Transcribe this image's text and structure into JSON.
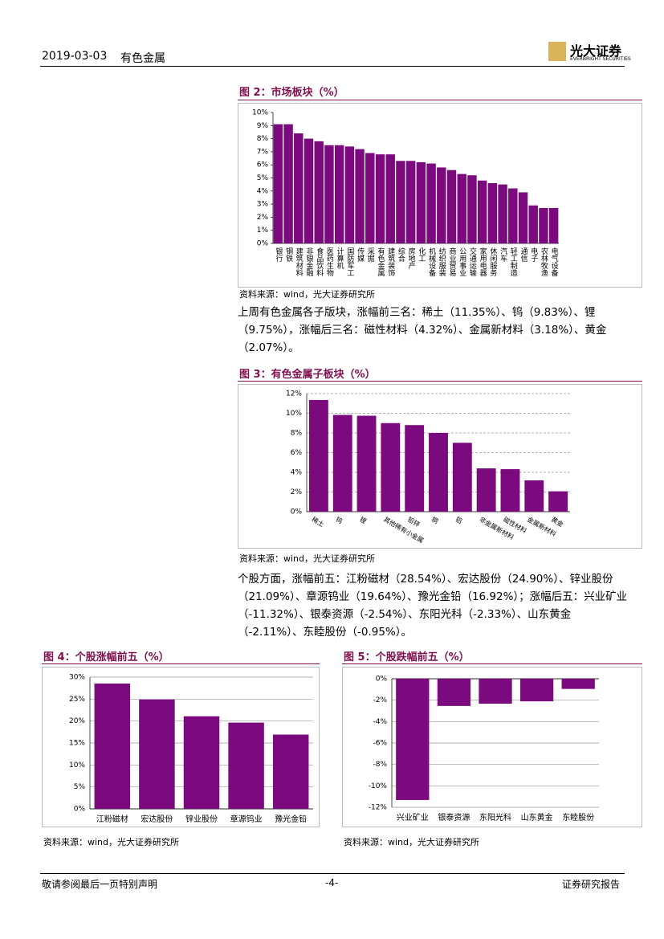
{
  "header": {
    "date": "2019-03-03",
    "sector": "有色金属",
    "logo": "光大证券",
    "logo_en": "EVERBRIGHT SECURITIES"
  },
  "paragraphs": [
    "上周有色金属各子版块，涨幅前三名：稀土（11.35%）、钨（9.83%）、锂（9.75%），涨幅后三名：磁性材料（4.32%）、金属新材料（3.18%）、黄金（2.07%）。",
    "个股方面，涨幅前五：江粉磁材（28.54%）、宏达股份（24.90%）、锌业股份（21.09%）、章源钨业（19.64%）、豫光金铅（16.92%）；涨幅后五：兴业矿业（-11.32%）、银泰资源（-2.54%）、东阳光科（-2.33%）、山东黄金（-2.11%）、东睦股份（-0.95%）。"
  ],
  "footer": {
    "left": "敬请参阅最后一页特别声明",
    "page": "-4-",
    "right": "证券研究报告"
  },
  "chart_data": [
    {
      "type": "bar",
      "title": "图 2：市场板块（%）",
      "source": "资料来源：wind，光大证券研究所",
      "color": "#7b0a7e",
      "grid": false,
      "categories": [
        "银行",
        "钢铁",
        "建筑材料",
        "非银金融",
        "食品饮料",
        "医药生物",
        "计算机",
        "国防军工",
        "传媒",
        "采掘",
        "有色金属",
        "建筑装饰",
        "综合",
        "房地产",
        "化工",
        "机械设备",
        "纺织服装",
        "商业贸易",
        "公用事业",
        "交通运输",
        "家用电器",
        "休闲服务",
        "汽车",
        "轻工制造",
        "通信",
        "电子",
        "农林牧渔",
        "电气设备"
      ],
      "values": [
        9.1,
        9.1,
        8.4,
        8.0,
        7.8,
        7.5,
        7.5,
        7.4,
        7.2,
        6.9,
        6.8,
        6.8,
        6.3,
        6.3,
        6.2,
        6.1,
        5.8,
        5.6,
        5.3,
        5.2,
        4.8,
        4.6,
        4.5,
        4.2,
        3.9,
        2.9,
        2.7,
        2.7
      ],
      "ylim": [
        0,
        10
      ],
      "yticks": [
        {
          "value": 0,
          "label": "0%"
        },
        {
          "value": 1,
          "label": "1%"
        },
        {
          "value": 2,
          "label": "2%"
        },
        {
          "value": 3,
          "label": "3%"
        },
        {
          "value": 4,
          "label": "4%"
        },
        {
          "value": 5,
          "label": "5%"
        },
        {
          "value": 6,
          "label": "6%"
        },
        {
          "value": 7,
          "label": "7%"
        },
        {
          "value": 8,
          "label": "8%"
        },
        {
          "value": 9,
          "label": "9%"
        },
        {
          "value": 10,
          "label": "10%"
        }
      ]
    },
    {
      "type": "bar",
      "title": "图 3：有色金属子板块（%）",
      "source": "资料来源：wind，光大证券研究所",
      "color": "#7b0a7e",
      "grid": true,
      "categories": [
        "稀土",
        "钨",
        "锂",
        "其他稀有小金属",
        "铅锌",
        "铜",
        "铝",
        "非金属新材料",
        "磁性材料",
        "金属新材料",
        "黄金"
      ],
      "values": [
        11.35,
        9.83,
        9.75,
        9.0,
        8.8,
        8.0,
        7.0,
        4.4,
        4.32,
        3.18,
        2.07
      ],
      "ylim": [
        0,
        12
      ],
      "yticks": [
        {
          "value": 0,
          "label": "0%"
        },
        {
          "value": 2,
          "label": "2%"
        },
        {
          "value": 4,
          "label": "4%"
        },
        {
          "value": 6,
          "label": "6%"
        },
        {
          "value": 8,
          "label": "8%"
        },
        {
          "value": 10,
          "label": "10%"
        },
        {
          "value": 12,
          "label": "12%"
        }
      ]
    },
    {
      "type": "bar",
      "title": "图 4：个股涨幅前五（%）",
      "source": "资料来源：wind，光大证券研究所",
      "color": "#7b0a7e",
      "grid": true,
      "categories": [
        "江粉磁材",
        "宏达股份",
        "锌业股份",
        "章源钨业",
        "豫光金铅"
      ],
      "values": [
        28.54,
        24.9,
        21.09,
        19.64,
        16.92
      ],
      "ylim": [
        0,
        30
      ],
      "yticks": [
        {
          "value": 0,
          "label": "0%"
        },
        {
          "value": 5,
          "label": "5%"
        },
        {
          "value": 10,
          "label": "10%"
        },
        {
          "value": 15,
          "label": "15%"
        },
        {
          "value": 20,
          "label": "20%"
        },
        {
          "value": 25,
          "label": "25%"
        },
        {
          "value": 30,
          "label": "30%"
        }
      ]
    },
    {
      "type": "bar",
      "title": "图 5：个股跌幅前五（%）",
      "source": "资料来源：wind，光大证券研究所",
      "color": "#7b0a7e",
      "grid": true,
      "categories": [
        "兴业矿业",
        "银泰资源",
        "东阳光科",
        "山东黄金",
        "东睦股份"
      ],
      "values": [
        -11.32,
        -2.54,
        -2.33,
        -2.11,
        -0.95
      ],
      "ylim": [
        -12,
        0
      ],
      "yticks": [
        {
          "value": -12,
          "label": "-12%"
        },
        {
          "value": -10,
          "label": "-10%"
        },
        {
          "value": -8,
          "label": "-8%"
        },
        {
          "value": -6,
          "label": "-6%"
        },
        {
          "value": -4,
          "label": "-4%"
        },
        {
          "value": -2,
          "label": "-2%"
        },
        {
          "value": 0,
          "label": "0%"
        }
      ]
    }
  ]
}
